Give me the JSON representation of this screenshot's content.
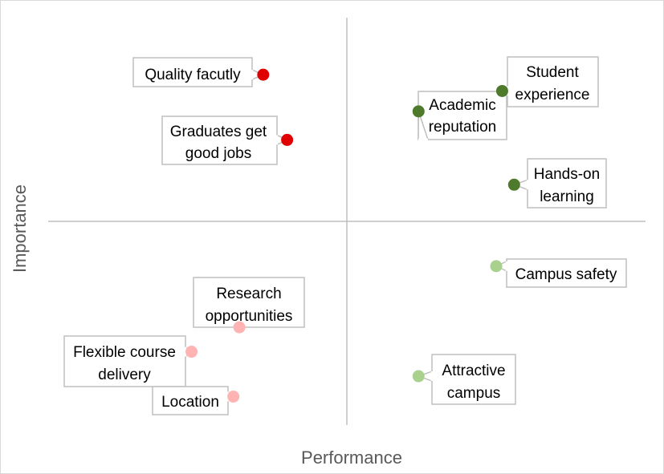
{
  "chart_data": {
    "type": "scatter",
    "title": "",
    "xlabel": "Performance",
    "ylabel": "Importance",
    "xlim": [
      0,
      10
    ],
    "ylim": [
      0,
      10
    ],
    "grid": false,
    "legend": "none",
    "quadrant_divider": {
      "x": 5,
      "y": 5
    },
    "points": [
      {
        "label": "Quality facutly",
        "x": 3.6,
        "y": 8.6,
        "color": "#e00000"
      },
      {
        "label": "Graduates get good jobs",
        "x": 4.0,
        "y": 7.0,
        "color": "#e00000"
      },
      {
        "label": "Student experience",
        "x": 7.6,
        "y": 8.2,
        "color": "#4e7a2c"
      },
      {
        "label": "Academic reputation",
        "x": 6.2,
        "y": 7.7,
        "color": "#4e7a2c"
      },
      {
        "label": "Hands-on learning",
        "x": 7.8,
        "y": 5.9,
        "color": "#4e7a2c"
      },
      {
        "label": "Campus safety",
        "x": 7.5,
        "y": 3.9,
        "color": "#a9d18e"
      },
      {
        "label": "Attractive campus",
        "x": 6.2,
        "y": 1.2,
        "color": "#a9d18e"
      },
      {
        "label": "Research opportunities",
        "x": 3.2,
        "y": 2.4,
        "color": "#ffb3b3"
      },
      {
        "label": "Flexible course delivery",
        "x": 2.4,
        "y": 1.8,
        "color": "#ffb3b3"
      },
      {
        "label": "Location",
        "x": 3.1,
        "y": 0.7,
        "color": "#ffb3b3"
      }
    ]
  }
}
